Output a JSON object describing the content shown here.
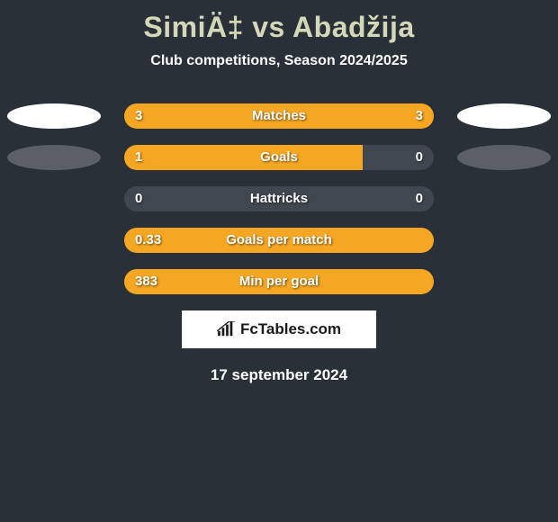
{
  "title": "SimiÄ‡ vs Abadžija",
  "subtitle": "Club competitions, Season 2024/2025",
  "colors": {
    "background": "#2a3038",
    "bar_track": "#414751",
    "bar_fill": "#f5a623",
    "title_color": "#d4d8b8",
    "text_color": "#ffffff",
    "avatar_white": "#ffffff",
    "avatar_grey": "#5a5f68",
    "logo_bg": "#ffffff",
    "logo_text": "#1a1a1a"
  },
  "typography": {
    "title_fontsize": 32,
    "subtitle_fontsize": 16,
    "stat_fontsize": 15,
    "date_fontsize": 17
  },
  "left_avatar_rows": [
    0,
    1
  ],
  "right_avatar_rows": [
    0,
    1
  ],
  "stats": [
    {
      "label": "Matches",
      "left_val": "3",
      "right_val": "3",
      "left_pct": 50,
      "right_pct": 50
    },
    {
      "label": "Goals",
      "left_val": "1",
      "right_val": "0",
      "left_pct": 77,
      "right_pct": 0
    },
    {
      "label": "Hattricks",
      "left_val": "0",
      "right_val": "0",
      "left_pct": 0,
      "right_pct": 0
    },
    {
      "label": "Goals per match",
      "left_val": "0.33",
      "right_val": "",
      "left_pct": 100,
      "right_pct": 0
    },
    {
      "label": "Min per goal",
      "left_val": "383",
      "right_val": "",
      "left_pct": 100,
      "right_pct": 0
    }
  ],
  "logo_text": "FcTables.com",
  "date": "17 september 2024"
}
